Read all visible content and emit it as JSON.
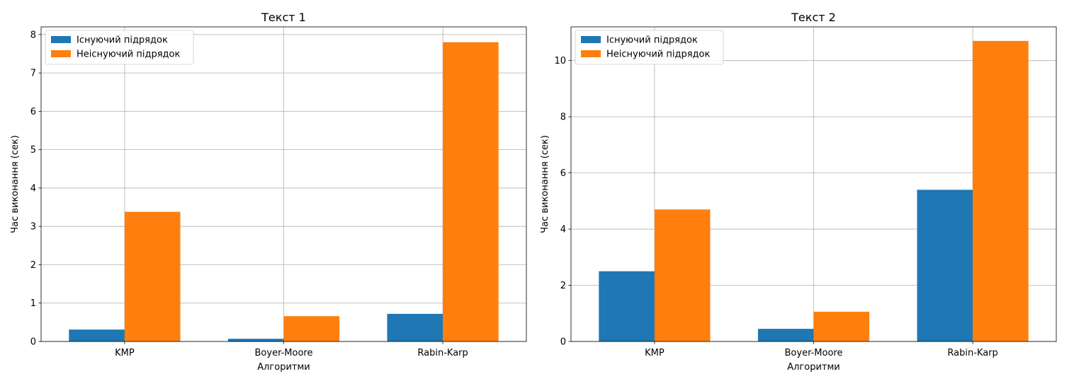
{
  "chart_data": [
    {
      "type": "bar",
      "title": "Текст 1",
      "xlabel": "Алгоритми",
      "ylabel": "Час виконання (сек)",
      "categories": [
        "KMP",
        "Boyer-Moore",
        "Rabin-Karp"
      ],
      "ylim": [
        0,
        8.2
      ],
      "yticks": [
        0,
        1,
        2,
        3,
        4,
        5,
        6,
        7,
        8
      ],
      "grid": true,
      "legend": "top-left",
      "series": [
        {
          "name": "Існуючий підрядок",
          "color": "#1f77b4",
          "values": [
            0.31,
            0.07,
            0.72
          ]
        },
        {
          "name": "Неіснуючий підрядок",
          "color": "#ff7f0e",
          "values": [
            3.38,
            0.66,
            7.8
          ]
        }
      ]
    },
    {
      "type": "bar",
      "title": "Текст 2",
      "xlabel": "Алгоритми",
      "ylabel": "Час виконання (сек)",
      "categories": [
        "KMP",
        "Boyer-Moore",
        "Rabin-Karp"
      ],
      "ylim": [
        0,
        11.2
      ],
      "yticks": [
        0,
        2,
        4,
        6,
        8,
        10
      ],
      "grid": true,
      "legend": "top-left",
      "series": [
        {
          "name": "Існуючий підрядок",
          "color": "#1f77b4",
          "values": [
            2.5,
            0.45,
            5.4
          ]
        },
        {
          "name": "Неіснуючий підрядок",
          "color": "#ff7f0e",
          "values": [
            4.7,
            1.06,
            10.7
          ]
        }
      ]
    }
  ]
}
